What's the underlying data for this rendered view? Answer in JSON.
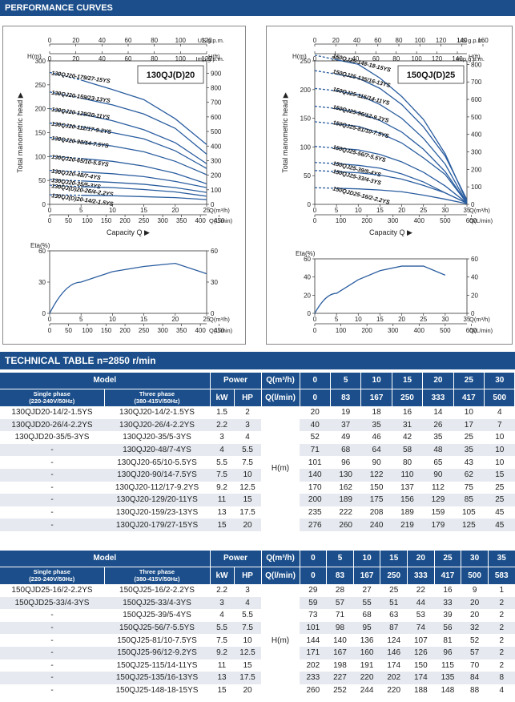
{
  "performance": {
    "title": "PERFORMANCE CURVES",
    "left": {
      "model": "130QJ(D)20",
      "us_label": "US g.p.m.",
      "imp_label": "Imp g.p.m.",
      "m3h_label": "Q(m³/h)",
      "lmin_label": "Q(L/min)",
      "h_m_label": "H(m)",
      "h_ft_label": "H(ft)",
      "y_axis_title": "Total manometric head",
      "x_axis_title": "Capacity Q",
      "eta_label": "Eta(%)",
      "us_ticks": [
        "0",
        "20",
        "40",
        "60",
        "80",
        "100",
        "120"
      ],
      "imp_ticks": [
        "0",
        "20",
        "40",
        "60",
        "80",
        "100",
        "120"
      ],
      "hm_ticks": [
        "0",
        "50",
        "100",
        "150",
        "200",
        "250",
        "300"
      ],
      "hft_ticks": [
        "0",
        "100",
        "200",
        "300",
        "400",
        "500",
        "600",
        "700",
        "800",
        "900"
      ],
      "m3h_ticks": [
        "0",
        "5",
        "10",
        "15",
        "20",
        "25"
      ],
      "lmin_ticks": [
        "0",
        "50",
        "100",
        "150",
        "200",
        "250",
        "300",
        "350",
        "400",
        "450"
      ],
      "eta_ticks": [
        "0",
        "30",
        "60"
      ],
      "curve_labels": [
        "130QJ20-179/27-15YS",
        "130QJ20-159/23-13YS",
        "130QJ20-129/20-11YS",
        "130QJ20-112/17-9.2YS",
        "130QJ20-90/14-7.5YS",
        "130QJ20-65/10-5.5YS",
        "130QJ20-48/7-4YS",
        "130QJ20-35/5-3YS",
        "130QJ(D)20-26/4-2.2YS",
        "130QJ(D)20-14/2-1.5YS"
      ]
    },
    "right": {
      "model": "150QJ(D)25",
      "us_label": "US g.p.m.",
      "imp_label": "Imp g.p.m.",
      "m3h_label": "Q(m³/h)",
      "lmin_label": "Q(L/min)",
      "h_m_label": "H(m)",
      "h_ft_label": "H(ft)",
      "y_axis_title": "Total manometric head",
      "x_axis_title": "Capacity Q",
      "eta_label": "Eta(%)",
      "us_ticks": [
        "0",
        "20",
        "40",
        "60",
        "80",
        "100",
        "120",
        "140",
        "160"
      ],
      "imp_ticks": [
        "0",
        "20",
        "40",
        "60",
        "80",
        "100",
        "120",
        "140"
      ],
      "hm_ticks": [
        "0",
        "50",
        "100",
        "150",
        "200",
        "250"
      ],
      "hft_ticks": [
        "0",
        "100",
        "200",
        "300",
        "400",
        "500",
        "600",
        "700",
        "800"
      ],
      "m3h_ticks": [
        "0",
        "5",
        "10",
        "15",
        "20",
        "25",
        "30",
        "35"
      ],
      "lmin_ticks": [
        "0",
        "100",
        "200",
        "300",
        "400",
        "500",
        "600"
      ],
      "eta_ticks": [
        "0",
        "20",
        "40",
        "60"
      ],
      "curve_labels": [
        "150QJ25-148-18-15YS",
        "150QJ25-135/16-13YS",
        "150QJ25-115/14-11YS",
        "150QJ25-96/12-9.2YS",
        "150QJ25-81/10-7.5YS",
        "150QJ25-56/7-5.5YS",
        "150QJ25-39/5-4YS",
        "150QJ25-33/4-3YS",
        "150QJD25-16/2-2.2YS"
      ]
    }
  },
  "chart_data": [
    {
      "type": "line",
      "title": "130QJ(D)20",
      "xlabel": "Q(m³/h)",
      "ylabel": "H(m)",
      "x": [
        0,
        5,
        10,
        15,
        20,
        25,
        30
      ],
      "xlim": [
        0,
        25
      ],
      "ylim": [
        0,
        300
      ],
      "series": [
        {
          "name": "130QJ20-179/27-15YS",
          "values": [
            276,
            260,
            240,
            219,
            179,
            125,
            45
          ]
        },
        {
          "name": "130QJ20-159/23-13YS",
          "values": [
            235,
            222,
            208,
            189,
            159,
            105,
            45
          ]
        },
        {
          "name": "130QJ20-129/20-11YS",
          "values": [
            200,
            189,
            175,
            156,
            129,
            85,
            25
          ]
        },
        {
          "name": "130QJ20-112/17-9.2YS",
          "values": [
            170,
            162,
            150,
            137,
            112,
            75,
            25
          ]
        },
        {
          "name": "130QJ20-90/14-7.5YS",
          "values": [
            140,
            130,
            122,
            110,
            90,
            62,
            15
          ]
        },
        {
          "name": "130QJ20-65/10-5.5YS",
          "values": [
            101,
            96,
            90,
            80,
            65,
            43,
            10
          ]
        },
        {
          "name": "130QJ20-48/7-4YS",
          "values": [
            71,
            68,
            64,
            58,
            48,
            35,
            10
          ]
        },
        {
          "name": "130QJ20-35/5-3YS",
          "values": [
            52,
            49,
            46,
            42,
            35,
            25,
            10
          ]
        },
        {
          "name": "130QJ(D)20-26/4-2.2YS",
          "values": [
            40,
            37,
            35,
            31,
            26,
            17,
            7
          ]
        },
        {
          "name": "130QJ(D)20-14/2-1.5YS",
          "values": [
            20,
            19,
            18,
            16,
            14,
            10,
            4
          ]
        }
      ],
      "efficiency": {
        "ylabel": "Eta(%)",
        "ylim": [
          0,
          60
        ],
        "x": [
          0,
          5,
          10,
          15,
          20,
          25
        ],
        "values": [
          0,
          30,
          40,
          45,
          48,
          38
        ]
      }
    },
    {
      "type": "line",
      "title": "150QJ(D)25",
      "xlabel": "Q(m³/h)",
      "ylabel": "H(m)",
      "x": [
        0,
        5,
        10,
        15,
        20,
        25,
        30,
        35
      ],
      "xlim": [
        0,
        35
      ],
      "ylim": [
        0,
        250
      ],
      "series": [
        {
          "name": "150QJ25-148-18-15YS",
          "values": [
            260,
            252,
            244,
            220,
            188,
            148,
            88,
            4
          ]
        },
        {
          "name": "150QJ25-135/16-13YS",
          "values": [
            233,
            227,
            220,
            202,
            174,
            135,
            84,
            8
          ]
        },
        {
          "name": "150QJ25-115/14-11YS",
          "values": [
            202,
            198,
            191,
            174,
            150,
            115,
            70,
            2
          ]
        },
        {
          "name": "150QJ25-96/12-9.2YS",
          "values": [
            171,
            167,
            160,
            146,
            126,
            96,
            57,
            2
          ]
        },
        {
          "name": "150QJ25-81/10-7.5YS",
          "values": [
            144,
            140,
            136,
            124,
            107,
            81,
            52,
            2
          ]
        },
        {
          "name": "150QJ25-56/7-5.5YS",
          "values": [
            101,
            98,
            95,
            87,
            74,
            56,
            32,
            2
          ]
        },
        {
          "name": "150QJ25-39/5-4YS",
          "values": [
            73,
            71,
            68,
            63,
            53,
            39,
            20,
            2
          ]
        },
        {
          "name": "150QJ25-33/4-3YS",
          "values": [
            59,
            57,
            55,
            51,
            44,
            33,
            20,
            2
          ]
        },
        {
          "name": "150QJD25-16/2-2.2YS",
          "values": [
            29,
            28,
            27,
            25,
            22,
            16,
            9,
            1
          ]
        }
      ],
      "efficiency": {
        "ylabel": "Eta(%)",
        "ylim": [
          0,
          60
        ],
        "x": [
          0,
          5,
          10,
          15,
          20,
          25,
          30
        ],
        "values": [
          0,
          22,
          37,
          47,
          52,
          52,
          42
        ]
      }
    }
  ],
  "tech": {
    "title": "TECHNICAL TABLE n=2850 r/min",
    "table1": {
      "header": {
        "model": "Model",
        "power": "Power",
        "qm3h": "Q(m³/h)",
        "qlmin": "Q(l/min)",
        "single": "Single phase (220-240V/50Hz)",
        "three": "Three phase (380-415V/50Hz)",
        "kw": "kW",
        "hp": "HP",
        "hm": "H(m)"
      },
      "q_m3h": [
        "0",
        "5",
        "10",
        "15",
        "20",
        "25",
        "30"
      ],
      "q_lmin": [
        "0",
        "83",
        "167",
        "250",
        "333",
        "417",
        "500"
      ],
      "rows": [
        {
          "single": "130QJD20-14/2-1.5YS",
          "three": "130QJ20-14/2-1.5YS",
          "kw": "1.5",
          "hp": "2",
          "h": [
            "20",
            "19",
            "18",
            "16",
            "14",
            "10",
            "4"
          ]
        },
        {
          "single": "130QJD20-26/4-2.2YS",
          "three": "130QJ20-26/4-2.2YS",
          "kw": "2.2",
          "hp": "3",
          "h": [
            "40",
            "37",
            "35",
            "31",
            "26",
            "17",
            "7"
          ]
        },
        {
          "single": "130QJD20-35/5-3YS",
          "three": "130QJ20-35/5-3YS",
          "kw": "3",
          "hp": "4",
          "h": [
            "52",
            "49",
            "46",
            "42",
            "35",
            "25",
            "10"
          ]
        },
        {
          "single": "-",
          "three": "130QJ20-48/7-4YS",
          "kw": "4",
          "hp": "5.5",
          "h": [
            "71",
            "68",
            "64",
            "58",
            "48",
            "35",
            "10"
          ]
        },
        {
          "single": "-",
          "three": "130QJ20-65/10-5.5YS",
          "kw": "5.5",
          "hp": "7.5",
          "h": [
            "101",
            "96",
            "90",
            "80",
            "65",
            "43",
            "10"
          ]
        },
        {
          "single": "-",
          "three": "130QJ20-90/14-7.5YS",
          "kw": "7.5",
          "hp": "10",
          "h": [
            "140",
            "130",
            "122",
            "110",
            "90",
            "62",
            "15"
          ]
        },
        {
          "single": "-",
          "three": "130QJ20-112/17-9.2YS",
          "kw": "9.2",
          "hp": "12.5",
          "h": [
            "170",
            "162",
            "150",
            "137",
            "112",
            "75",
            "25"
          ]
        },
        {
          "single": "-",
          "three": "130QJ20-129/20-11YS",
          "kw": "11",
          "hp": "15",
          "h": [
            "200",
            "189",
            "175",
            "156",
            "129",
            "85",
            "25"
          ]
        },
        {
          "single": "-",
          "three": "130QJ20-159/23-13YS",
          "kw": "13",
          "hp": "17.5",
          "h": [
            "235",
            "222",
            "208",
            "189",
            "159",
            "105",
            "45"
          ]
        },
        {
          "single": "-",
          "three": "130QJ20-179/27-15YS",
          "kw": "15",
          "hp": "20",
          "h": [
            "276",
            "260",
            "240",
            "219",
            "179",
            "125",
            "45"
          ]
        }
      ]
    },
    "table2": {
      "header": {
        "model": "Model",
        "power": "Power",
        "qm3h": "Q(m³/h)",
        "qlmin": "Q(l/min)",
        "single": "Single phase (220-240V/50Hz)",
        "three": "Three phase (380-415V/50Hz)",
        "kw": "kW",
        "hp": "HP",
        "hm": "H(m)"
      },
      "q_m3h": [
        "0",
        "5",
        "10",
        "15",
        "20",
        "25",
        "30",
        "35"
      ],
      "q_lmin": [
        "0",
        "83",
        "167",
        "250",
        "333",
        "417",
        "500",
        "583"
      ],
      "rows": [
        {
          "single": "150QJD25-16/2-2.2YS",
          "three": "150QJ25-16/2-2.2YS",
          "kw": "2.2",
          "hp": "3",
          "h": [
            "29",
            "28",
            "27",
            "25",
            "22",
            "16",
            "9",
            "1"
          ]
        },
        {
          "single": "150QJD25-33/4-3YS",
          "three": "150QJ25-33/4-3YS",
          "kw": "3",
          "hp": "4",
          "h": [
            "59",
            "57",
            "55",
            "51",
            "44",
            "33",
            "20",
            "2"
          ]
        },
        {
          "single": "-",
          "three": "150QJ25-39/5-4YS",
          "kw": "4",
          "hp": "5.5",
          "h": [
            "73",
            "71",
            "68",
            "63",
            "53",
            "39",
            "20",
            "2"
          ]
        },
        {
          "single": "-",
          "three": "150QJ25-56/7-5.5YS",
          "kw": "5.5",
          "hp": "7.5",
          "h": [
            "101",
            "98",
            "95",
            "87",
            "74",
            "56",
            "32",
            "2"
          ]
        },
        {
          "single": "-",
          "three": "150QJ25-81/10-7.5YS",
          "kw": "7.5",
          "hp": "10",
          "h": [
            "144",
            "140",
            "136",
            "124",
            "107",
            "81",
            "52",
            "2"
          ]
        },
        {
          "single": "-",
          "three": "150QJ25-96/12-9.2YS",
          "kw": "9.2",
          "hp": "12.5",
          "h": [
            "171",
            "167",
            "160",
            "146",
            "126",
            "96",
            "57",
            "2"
          ]
        },
        {
          "single": "-",
          "three": "150QJ25-115/14-11YS",
          "kw": "11",
          "hp": "15",
          "h": [
            "202",
            "198",
            "191",
            "174",
            "150",
            "115",
            "70",
            "2"
          ]
        },
        {
          "single": "-",
          "three": "150QJ25-135/16-13YS",
          "kw": "13",
          "hp": "17.5",
          "h": [
            "233",
            "227",
            "220",
            "202",
            "174",
            "135",
            "84",
            "8"
          ]
        },
        {
          "single": "-",
          "three": "150QJ25-148-18-15YS",
          "kw": "15",
          "hp": "20",
          "h": [
            "260",
            "252",
            "244",
            "220",
            "188",
            "148",
            "88",
            "4"
          ]
        }
      ]
    }
  },
  "colors": {
    "brand": "#1b4e8a",
    "curve": "#2a5d9f",
    "row_alt": "#e6eaf0"
  }
}
